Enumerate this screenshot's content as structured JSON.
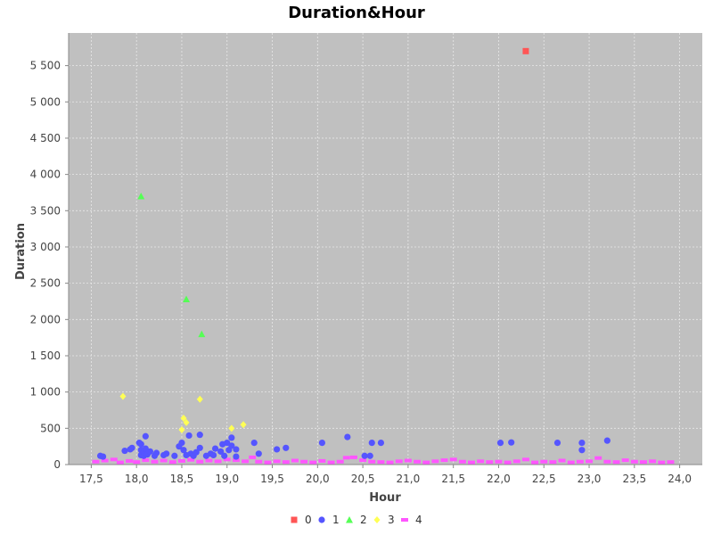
{
  "chart_data": {
    "type": "scatter",
    "title": "Duration&Hour",
    "xlabel": "Hour",
    "ylabel": "Duration",
    "xlim": [
      17.25,
      24.25
    ],
    "ylim": [
      0,
      5950
    ],
    "xticks": [
      17.5,
      18.0,
      18.5,
      19.0,
      19.5,
      20.0,
      20.5,
      21.0,
      21.5,
      22.0,
      22.5,
      23.0,
      23.5,
      24.0
    ],
    "xtick_labels": [
      "17,5",
      "18,0",
      "18,5",
      "19,0",
      "19,5",
      "20,0",
      "20,5",
      "21,0",
      "21,5",
      "22,0",
      "22,5",
      "23,0",
      "23,5",
      "24,0"
    ],
    "yticks": [
      0,
      500,
      1000,
      1500,
      2000,
      2500,
      3000,
      3500,
      4000,
      4500,
      5000,
      5500
    ],
    "ytick_labels": [
      "0",
      "500",
      "1 000",
      "1 500",
      "2 000",
      "2 500",
      "3 000",
      "3 500",
      "4 000",
      "4 500",
      "5 000",
      "5 500"
    ],
    "grid": true,
    "plot_background": "#c0c0c0",
    "legend_position": "bottom",
    "series": [
      {
        "name": "0",
        "color": "#ff5555",
        "marker": "square",
        "points": [
          [
            22.3,
            5700
          ]
        ]
      },
      {
        "name": "1",
        "color": "#5555ff",
        "marker": "circle",
        "points": [
          [
            17.6,
            120
          ],
          [
            17.63,
            110
          ],
          [
            17.87,
            190
          ],
          [
            17.93,
            210
          ],
          [
            17.95,
            230
          ],
          [
            18.03,
            300
          ],
          [
            18.05,
            280
          ],
          [
            18.05,
            200
          ],
          [
            18.05,
            130
          ],
          [
            18.08,
            170
          ],
          [
            18.08,
            120
          ],
          [
            18.1,
            390
          ],
          [
            18.1,
            220
          ],
          [
            18.12,
            140
          ],
          [
            18.15,
            180
          ],
          [
            18.2,
            120
          ],
          [
            18.22,
            160
          ],
          [
            18.3,
            130
          ],
          [
            18.33,
            150
          ],
          [
            18.42,
            120
          ],
          [
            18.47,
            250
          ],
          [
            18.5,
            300
          ],
          [
            18.52,
            200
          ],
          [
            18.55,
            130
          ],
          [
            18.58,
            400
          ],
          [
            18.6,
            150
          ],
          [
            18.63,
            120
          ],
          [
            18.66,
            170
          ],
          [
            18.7,
            230
          ],
          [
            18.7,
            410
          ],
          [
            18.77,
            120
          ],
          [
            18.82,
            150
          ],
          [
            18.85,
            130
          ],
          [
            18.87,
            220
          ],
          [
            18.93,
            180
          ],
          [
            18.95,
            280
          ],
          [
            18.97,
            120
          ],
          [
            19.0,
            300
          ],
          [
            19.02,
            200
          ],
          [
            19.05,
            260
          ],
          [
            19.05,
            370
          ],
          [
            19.1,
            110
          ],
          [
            19.1,
            210
          ],
          [
            19.3,
            300
          ],
          [
            19.35,
            150
          ],
          [
            19.55,
            210
          ],
          [
            19.65,
            230
          ],
          [
            20.05,
            300
          ],
          [
            20.33,
            380
          ],
          [
            20.52,
            120
          ],
          [
            20.58,
            120
          ],
          [
            20.6,
            300
          ],
          [
            20.7,
            300
          ],
          [
            22.02,
            300
          ],
          [
            22.14,
            305
          ],
          [
            22.65,
            300
          ],
          [
            22.92,
            300
          ],
          [
            22.92,
            200
          ],
          [
            23.2,
            330
          ]
        ]
      },
      {
        "name": "2",
        "color": "#55ff55",
        "marker": "triangle",
        "points": [
          [
            18.05,
            3700
          ],
          [
            18.55,
            2280
          ],
          [
            18.72,
            1800
          ]
        ]
      },
      {
        "name": "3",
        "color": "#ffff55",
        "marker": "diamond",
        "points": [
          [
            17.85,
            940
          ],
          [
            18.52,
            640
          ],
          [
            18.55,
            580
          ],
          [
            18.5,
            480
          ],
          [
            18.7,
            900
          ],
          [
            19.05,
            500
          ],
          [
            19.18,
            550
          ]
        ]
      },
      {
        "name": "4",
        "color": "#ff55ff",
        "marker": "rect",
        "points": [
          [
            17.55,
            40
          ],
          [
            17.65,
            55
          ],
          [
            17.75,
            70
          ],
          [
            17.82,
            30
          ],
          [
            17.92,
            50
          ],
          [
            18.0,
            35
          ],
          [
            18.1,
            60
          ],
          [
            18.2,
            40
          ],
          [
            18.3,
            55
          ],
          [
            18.4,
            35
          ],
          [
            18.5,
            50
          ],
          [
            18.6,
            65
          ],
          [
            18.7,
            40
          ],
          [
            18.8,
            55
          ],
          [
            18.9,
            45
          ],
          [
            19.0,
            70
          ],
          [
            19.1,
            60
          ],
          [
            19.2,
            45
          ],
          [
            19.28,
            100
          ],
          [
            19.35,
            40
          ],
          [
            19.45,
            30
          ],
          [
            19.55,
            45
          ],
          [
            19.65,
            35
          ],
          [
            19.75,
            55
          ],
          [
            19.85,
            40
          ],
          [
            19.95,
            30
          ],
          [
            20.05,
            50
          ],
          [
            20.15,
            30
          ],
          [
            20.25,
            40
          ],
          [
            20.32,
            95
          ],
          [
            20.4,
            100
          ],
          [
            20.5,
            60
          ],
          [
            20.6,
            40
          ],
          [
            20.7,
            35
          ],
          [
            20.8,
            30
          ],
          [
            20.9,
            45
          ],
          [
            21.0,
            55
          ],
          [
            21.1,
            40
          ],
          [
            21.2,
            30
          ],
          [
            21.3,
            45
          ],
          [
            21.4,
            60
          ],
          [
            21.5,
            70
          ],
          [
            21.6,
            40
          ],
          [
            21.7,
            30
          ],
          [
            21.8,
            45
          ],
          [
            21.9,
            35
          ],
          [
            22.0,
            40
          ],
          [
            22.1,
            30
          ],
          [
            22.2,
            45
          ],
          [
            22.3,
            70
          ],
          [
            22.4,
            30
          ],
          [
            22.5,
            40
          ],
          [
            22.6,
            35
          ],
          [
            22.7,
            55
          ],
          [
            22.8,
            30
          ],
          [
            22.9,
            40
          ],
          [
            23.0,
            45
          ],
          [
            23.1,
            90
          ],
          [
            23.2,
            40
          ],
          [
            23.3,
            35
          ],
          [
            23.4,
            60
          ],
          [
            23.5,
            40
          ],
          [
            23.6,
            35
          ],
          [
            23.7,
            45
          ],
          [
            23.8,
            30
          ],
          [
            23.9,
            35
          ]
        ]
      }
    ]
  }
}
